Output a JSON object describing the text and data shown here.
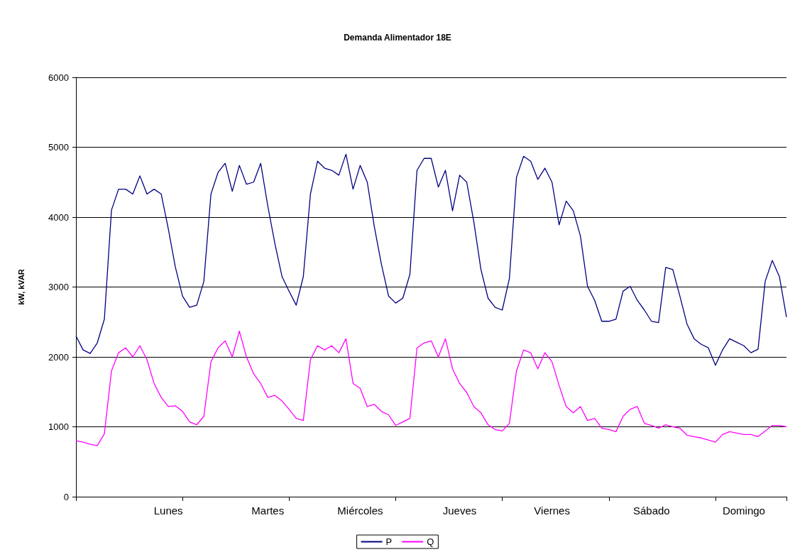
{
  "chart_data": {
    "type": "line",
    "title": "Demanda Alimentador 18E",
    "ylabel": "kW, kVAR",
    "categories": [
      null,
      null,
      null,
      null,
      null,
      null,
      null,
      null,
      null,
      null,
      null,
      null,
      null,
      "Lunes",
      null,
      null,
      null,
      null,
      null,
      null,
      null,
      null,
      null,
      null,
      null,
      null,
      null,
      "Martes",
      null,
      null,
      null,
      null,
      null,
      null,
      null,
      null,
      null,
      null,
      null,
      null,
      "Miércoles",
      null,
      null,
      null,
      null,
      null,
      null,
      null,
      null,
      null,
      null,
      null,
      null,
      null,
      "Jueves",
      null,
      null,
      null,
      null,
      null,
      null,
      null,
      null,
      null,
      null,
      null,
      null,
      "Viernes",
      null,
      null,
      null,
      null,
      null,
      null,
      null,
      null,
      null,
      null,
      null,
      null,
      null,
      "Sábado",
      null,
      null,
      null,
      null,
      null,
      null,
      null,
      null,
      null,
      null,
      null,
      null,
      "Domingo",
      null,
      null,
      null,
      null,
      null,
      null
    ],
    "series": [
      {
        "name": "P",
        "color": "#000080",
        "values": [
          2300,
          2100,
          2050,
          2200,
          2540,
          4100,
          4400,
          4400,
          4330,
          4590,
          4330,
          4400,
          4330,
          3830,
          3280,
          2870,
          2710,
          2740,
          3080,
          4330,
          4640,
          4770,
          4370,
          4740,
          4470,
          4500,
          4770,
          4160,
          3620,
          3150,
          2940,
          2740,
          3150,
          4330,
          4800,
          4700,
          4670,
          4600,
          4900,
          4400,
          4740,
          4500,
          3860,
          3320,
          2870,
          2770,
          2840,
          3180,
          4670,
          4840,
          4840,
          4430,
          4670,
          4090,
          4600,
          4500,
          3930,
          3250,
          2840,
          2710,
          2670,
          3120,
          4570,
          4870,
          4800,
          4540,
          4700,
          4500,
          3890,
          4230,
          4090,
          3730,
          3010,
          2810,
          2510,
          2510,
          2540,
          2940,
          3010,
          2810,
          2670,
          2510,
          2490,
          3280,
          3250,
          2870,
          2470,
          2260,
          2180,
          2130,
          1880,
          2100,
          2260,
          2210,
          2160,
          2060,
          2110,
          3080,
          3380,
          3150,
          2570
        ]
      },
      {
        "name": "Q",
        "color": "#ff00ff",
        "values": [
          800,
          780,
          750,
          730,
          900,
          1800,
          2060,
          2130,
          2000,
          2160,
          1960,
          1620,
          1420,
          1290,
          1300,
          1220,
          1070,
          1030,
          1150,
          1930,
          2130,
          2230,
          2000,
          2370,
          2000,
          1760,
          1620,
          1420,
          1450,
          1370,
          1250,
          1120,
          1090,
          1960,
          2160,
          2100,
          2160,
          2060,
          2260,
          1620,
          1550,
          1290,
          1320,
          1220,
          1170,
          1020,
          1070,
          1120,
          2130,
          2200,
          2230,
          2000,
          2260,
          1830,
          1620,
          1490,
          1290,
          1200,
          1030,
          960,
          940,
          1050,
          1800,
          2100,
          2060,
          1830,
          2060,
          1930,
          1590,
          1290,
          1200,
          1290,
          1090,
          1120,
          980,
          960,
          930,
          1150,
          1250,
          1290,
          1050,
          1020,
          980,
          1030,
          1000,
          980,
          880,
          860,
          840,
          810,
          780,
          890,
          930,
          910,
          890,
          890,
          860,
          940,
          1020,
          1020,
          1000
        ]
      }
    ],
    "ylim": [
      0,
      6000
    ],
    "yticks": [
      0,
      1000,
      2000,
      3000,
      4000,
      5000,
      6000
    ],
    "grid": "y",
    "legend": "bottom",
    "marker": "none",
    "line_style": "solid"
  }
}
